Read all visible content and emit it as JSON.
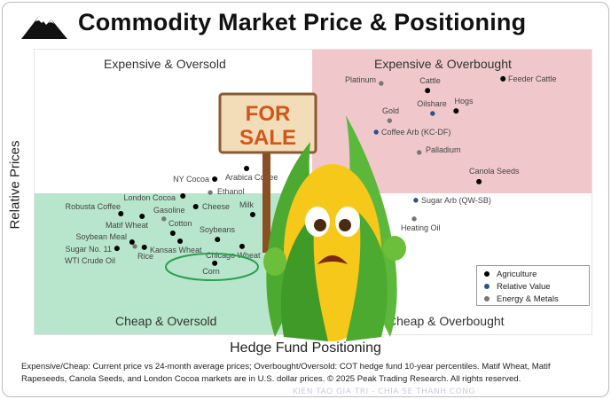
{
  "title": "Commodity Market Price & Positioning",
  "quadrants": {
    "top_left": "Expensive & Oversold",
    "top_right": "Expensive & Overbought",
    "bottom_left": "Cheap & Oversold",
    "bottom_right": "Cheap & Overbought"
  },
  "footnote": "Expensive/Cheap: Current price vs 24-month average prices; Overbought/Oversold: COT hedge fund 10-year percentiles. Matif Wheat, Matif Rapeseeds, Canola Seeds, and London Cocoa markets are in U.S. dollar prices. © 2025 Peak Trading Research. All rights reserved.",
  "sign_text": [
    "FOR",
    "SALE"
  ],
  "watermark": "KIEN TAO GIA TRI - CHIA SE THANH CONG",
  "colors": {
    "agriculture": "#000000",
    "relative_value": "#2f4f8f",
    "energy_metals": "#777777",
    "expensive_overbought_bg": "#f0c8cc",
    "cheap_oversold_bg": "#b8e6cc",
    "corn_circle": "#2aa050"
  },
  "chart_data": {
    "type": "scatter",
    "xlabel": "Hedge Fund Positioning",
    "ylabel": "Relative Prices",
    "legend": {
      "position": "bottom-right",
      "entries": [
        "Agriculture",
        "Relative Value",
        "Energy & Metals"
      ]
    },
    "grid": false,
    "highlight": "Corn",
    "points": [
      {
        "label": "Robusta Coffee",
        "group": "Agriculture",
        "x": 15.6,
        "y": 42.4
      },
      {
        "label": "Matif Wheat",
        "group": "Agriculture",
        "x": 19.4,
        "y": 41.5
      },
      {
        "label": "Soybean Meal",
        "group": "Agriculture",
        "x": 17.6,
        "y": 32.5
      },
      {
        "label": "Sugar No. 11",
        "group": "Agriculture",
        "x": 14.9,
        "y": 30.3
      },
      {
        "label": "WTI Crude Oil",
        "group": "Energy & Metals",
        "x": 18.1,
        "y": 31.0
      },
      {
        "label": "Rice",
        "group": "Agriculture",
        "x": 19.8,
        "y": 30.7
      },
      {
        "label": "London Cocoa",
        "group": "Agriculture",
        "x": 26.7,
        "y": 48.6
      },
      {
        "label": "Cheese",
        "group": "Agriculture",
        "x": 29.0,
        "y": 44.9
      },
      {
        "label": "Gasoline",
        "group": "Energy & Metals",
        "x": 23.3,
        "y": 40.6
      },
      {
        "label": "Cotton",
        "group": "Agriculture",
        "x": 24.9,
        "y": 35.6
      },
      {
        "label": "Kansas Wheat",
        "group": "Agriculture",
        "x": 26.2,
        "y": 32.8
      },
      {
        "label": "Soybeans",
        "group": "Agriculture",
        "x": 32.9,
        "y": 33.4
      },
      {
        "label": "Chicago Wheat",
        "group": "Agriculture",
        "x": 37.3,
        "y": 31.0
      },
      {
        "label": "Corn",
        "group": "Agriculture",
        "x": 32.4,
        "y": 25.1
      },
      {
        "label": "Milk",
        "group": "Agriculture",
        "x": 39.2,
        "y": 42.1
      },
      {
        "label": "NY Cocoa",
        "group": "Agriculture",
        "x": 32.4,
        "y": 54.5
      },
      {
        "label": "Ethanol",
        "group": "Energy & Metals",
        "x": 31.6,
        "y": 49.8
      },
      {
        "label": "Arabica Coffee",
        "group": "Agriculture",
        "x": 38.1,
        "y": 58.2
      },
      {
        "label": "Platinum",
        "group": "Energy & Metals",
        "x": 62.2,
        "y": 87.9
      },
      {
        "label": "Cattle",
        "group": "Agriculture",
        "x": 70.5,
        "y": 85.4
      },
      {
        "label": "Feeder Cattle",
        "group": "Agriculture",
        "x": 84.0,
        "y": 89.5
      },
      {
        "label": "Gold",
        "group": "Energy & Metals",
        "x": 63.7,
        "y": 74.9
      },
      {
        "label": "Oilshare",
        "group": "Relative Value",
        "x": 71.4,
        "y": 77.4
      },
      {
        "label": "Hogs",
        "group": "Agriculture",
        "x": 75.6,
        "y": 78.3
      },
      {
        "label": "Coffee Arb (KC-DF)",
        "group": "Relative Value",
        "x": 61.3,
        "y": 70.9
      },
      {
        "label": "Palladium",
        "group": "Energy & Metals",
        "x": 69.0,
        "y": 63.8
      },
      {
        "label": "Canola Seeds",
        "group": "Agriculture",
        "x": 79.7,
        "y": 53.6
      },
      {
        "label": "Sugar Arb (QW-SB)",
        "group": "Relative Value",
        "x": 68.4,
        "y": 47.1
      },
      {
        "label": "Heating Oil",
        "group": "Energy & Metals",
        "x": 68.1,
        "y": 40.6
      }
    ]
  }
}
